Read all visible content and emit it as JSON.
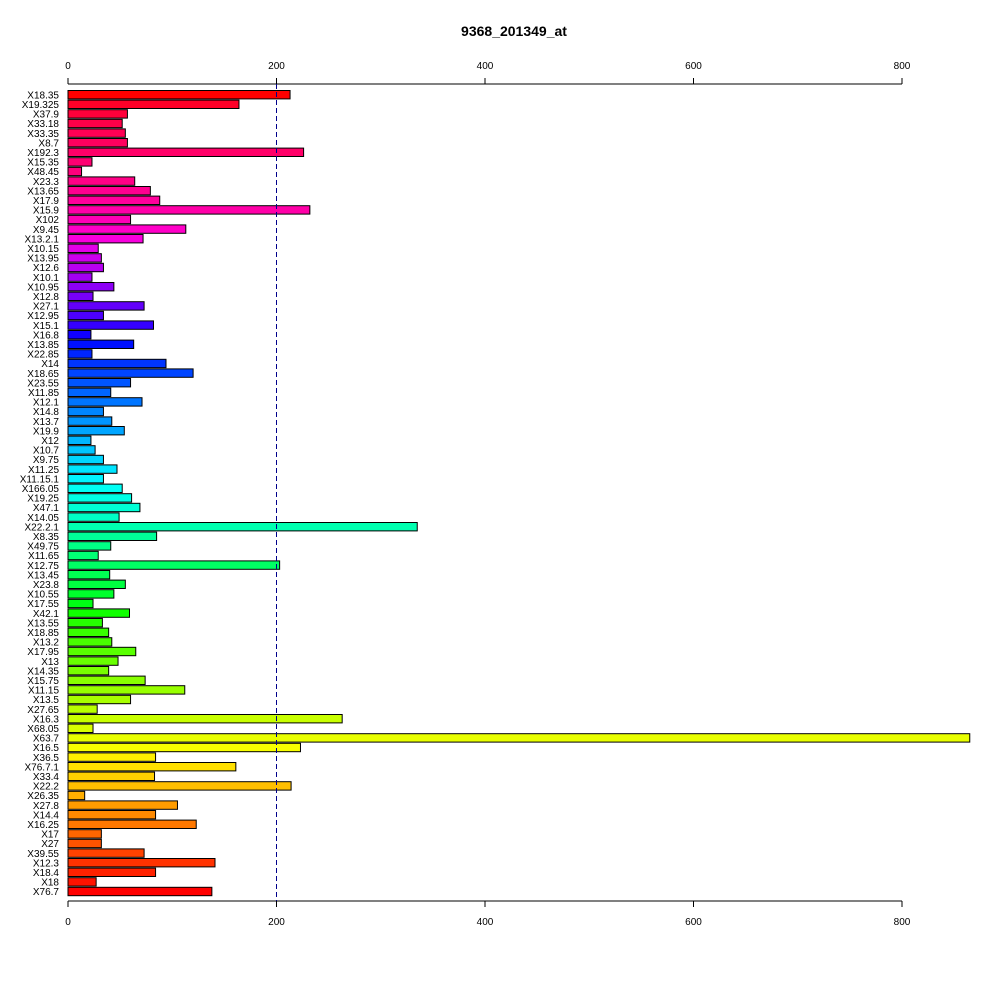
{
  "chart_data": {
    "type": "bar",
    "orientation": "horizontal",
    "title": "9368_201349_at",
    "xlabel": "",
    "ylabel": "",
    "xlim": [
      0,
      865
    ],
    "xticks": [
      0,
      200,
      400,
      600,
      800
    ],
    "reference_line": 200,
    "grid": false,
    "legend": "none",
    "categories": [
      "X18.35",
      "X19.325",
      "X37.9",
      "X33.18",
      "X33.35",
      "X8.7",
      "X192.3",
      "X15.35",
      "X48.45",
      "X23.3",
      "X13.65",
      "X17.9",
      "X15.9",
      "X102",
      "X9.45",
      "X13.2.1",
      "X10.15",
      "X13.95",
      "X12.6",
      "X10.1",
      "X10.95",
      "X12.8",
      "X27.1",
      "X12.95",
      "X15.1",
      "X16.8",
      "X13.85",
      "X22.85",
      "X14",
      "X18.65",
      "X23.55",
      "X11.85",
      "X12.1",
      "X14.8",
      "X13.7",
      "X19.9",
      "X12",
      "X10.7",
      "X9.75",
      "X11.25",
      "X11.15.1",
      "X166.05",
      "X19.25",
      "X47.1",
      "X14.05",
      "X22.2.1",
      "X8.35",
      "X49.75",
      "X11.65",
      "X12.75",
      "X13.45",
      "X23.8",
      "X10.55",
      "X17.55",
      "X42.1",
      "X13.55",
      "X18.85",
      "X13.2",
      "X17.95",
      "X13",
      "X14.35",
      "X15.75",
      "X11.15",
      "X13.5",
      "X27.65",
      "X16.3",
      "X68.05",
      "X63.7",
      "X16.5",
      "X36.5",
      "X76.7.1",
      "X33.4",
      "X22.2",
      "X26.35",
      "X27.8",
      "X14.4",
      "X16.25",
      "X17",
      "X27",
      "X39.55",
      "X12.3",
      "X18.4",
      "X18",
      "X76.7"
    ],
    "values": [
      213,
      164,
      57,
      52,
      55,
      57,
      226,
      23,
      13,
      64,
      79,
      88,
      232,
      60,
      113,
      72,
      29,
      32,
      34,
      23,
      44,
      24,
      73,
      34,
      82,
      22,
      63,
      23,
      94,
      120,
      60,
      41,
      71,
      34,
      42,
      54,
      22,
      26,
      34,
      47,
      34,
      52,
      61,
      69,
      49,
      335,
      85,
      41,
      29,
      203,
      40,
      55,
      44,
      24,
      59,
      33,
      39,
      42,
      65,
      48,
      39,
      74,
      112,
      60,
      28,
      263,
      24,
      865,
      223,
      84,
      161,
      83,
      214,
      16,
      105,
      84,
      123,
      32,
      32,
      73,
      141,
      84,
      27,
      138
    ],
    "colors": [
      "#ff0000",
      "#ff0028",
      "#ff003a",
      "#ff0048",
      "#ff0054",
      "#ff005e",
      "#ff0068",
      "#ff0072",
      "#ff007c",
      "#ff0086",
      "#ff0090",
      "#ff009b",
      "#ff00a8",
      "#ff00b6",
      "#ff00c8",
      "#f800de",
      "#e200e8",
      "#cc00ee",
      "#b700f2",
      "#a200f4",
      "#8d00f6",
      "#7800f8",
      "#6300fa",
      "#4d00fc",
      "#3500fe",
      "#1000ff",
      "#0010ff",
      "#0025ff",
      "#0035ff",
      "#0045ff",
      "#0055ff",
      "#0065ff",
      "#0075ff",
      "#0085ff",
      "#0095ff",
      "#00a5ff",
      "#00b5ff",
      "#00c5ff",
      "#00d5ff",
      "#00e5ff",
      "#00f5ff",
      "#00fff5",
      "#00ffe6",
      "#00ffd6",
      "#00ffc6",
      "#00ffb0",
      "#00ff98",
      "#00ff85",
      "#00ff74",
      "#00ff64",
      "#00ff52",
      "#00ff40",
      "#00ff2c",
      "#00ff14",
      "#10ff00",
      "#26ff00",
      "#38ff00",
      "#48ff00",
      "#58ff00",
      "#68ff00",
      "#78ff00",
      "#88ff00",
      "#98ff00",
      "#a8ff00",
      "#b8ff00",
      "#c8ff00",
      "#d8ff00",
      "#e8ff00",
      "#f8ff00",
      "#fff000",
      "#ffe000",
      "#ffd000",
      "#ffbf00",
      "#ffae00",
      "#ff9c00",
      "#ff8a00",
      "#ff7800",
      "#ff6500",
      "#ff5300",
      "#ff4200",
      "#ff3200",
      "#ff2200",
      "#ff1200",
      "#ff0000"
    ]
  }
}
